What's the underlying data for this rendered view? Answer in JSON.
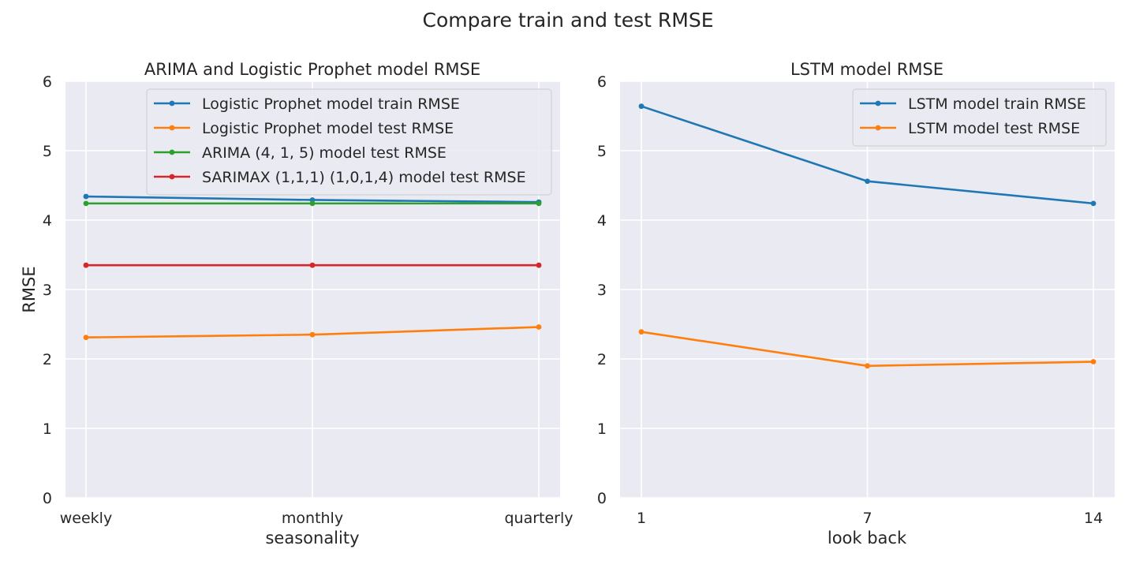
{
  "figure": {
    "suptitle": "Compare train and test RMSE"
  },
  "chart_data": [
    {
      "type": "line",
      "title": "ARIMA and Logistic Prophet model RMSE",
      "xlabel": "seasonality",
      "ylabel": "RMSE",
      "categories": [
        "weekly",
        "monthly",
        "quarterly"
      ],
      "ylim": [
        0,
        6
      ],
      "yticks": [
        "0",
        "1",
        "2",
        "3",
        "4",
        "5",
        "6"
      ],
      "grid": true,
      "legend": "upper right",
      "series": [
        {
          "name": "Logistic Prophet model train RMSE",
          "values": [
            4.34,
            4.29,
            4.26
          ],
          "color": "#1f77b4"
        },
        {
          "name": "Logistic Prophet model test RMSE",
          "values": [
            2.31,
            2.35,
            2.46
          ],
          "color": "#ff7f0e"
        },
        {
          "name": "ARIMA (4, 1, 5) model test RMSE",
          "values": [
            4.24,
            4.24,
            4.24
          ],
          "color": "#2ca02c"
        },
        {
          "name": "SARIMAX (1,1,1) (1,0,1,4) model test RMSE",
          "values": [
            3.35,
            3.35,
            3.35
          ],
          "color": "#d62728"
        }
      ]
    },
    {
      "type": "line",
      "title": "LSTM model RMSE",
      "xlabel": "look back",
      "ylabel": "",
      "categories": [
        "1",
        "7",
        "14"
      ],
      "ylim": [
        0,
        6
      ],
      "yticks": [
        "0",
        "1",
        "2",
        "3",
        "4",
        "5",
        "6"
      ],
      "grid": true,
      "legend": "upper right",
      "series": [
        {
          "name": "LSTM model train RMSE",
          "values": [
            5.64,
            4.56,
            4.24
          ],
          "color": "#1f77b4"
        },
        {
          "name": "LSTM model test RMSE",
          "values": [
            2.39,
            1.9,
            1.96
          ],
          "color": "#ff7f0e"
        }
      ]
    }
  ]
}
